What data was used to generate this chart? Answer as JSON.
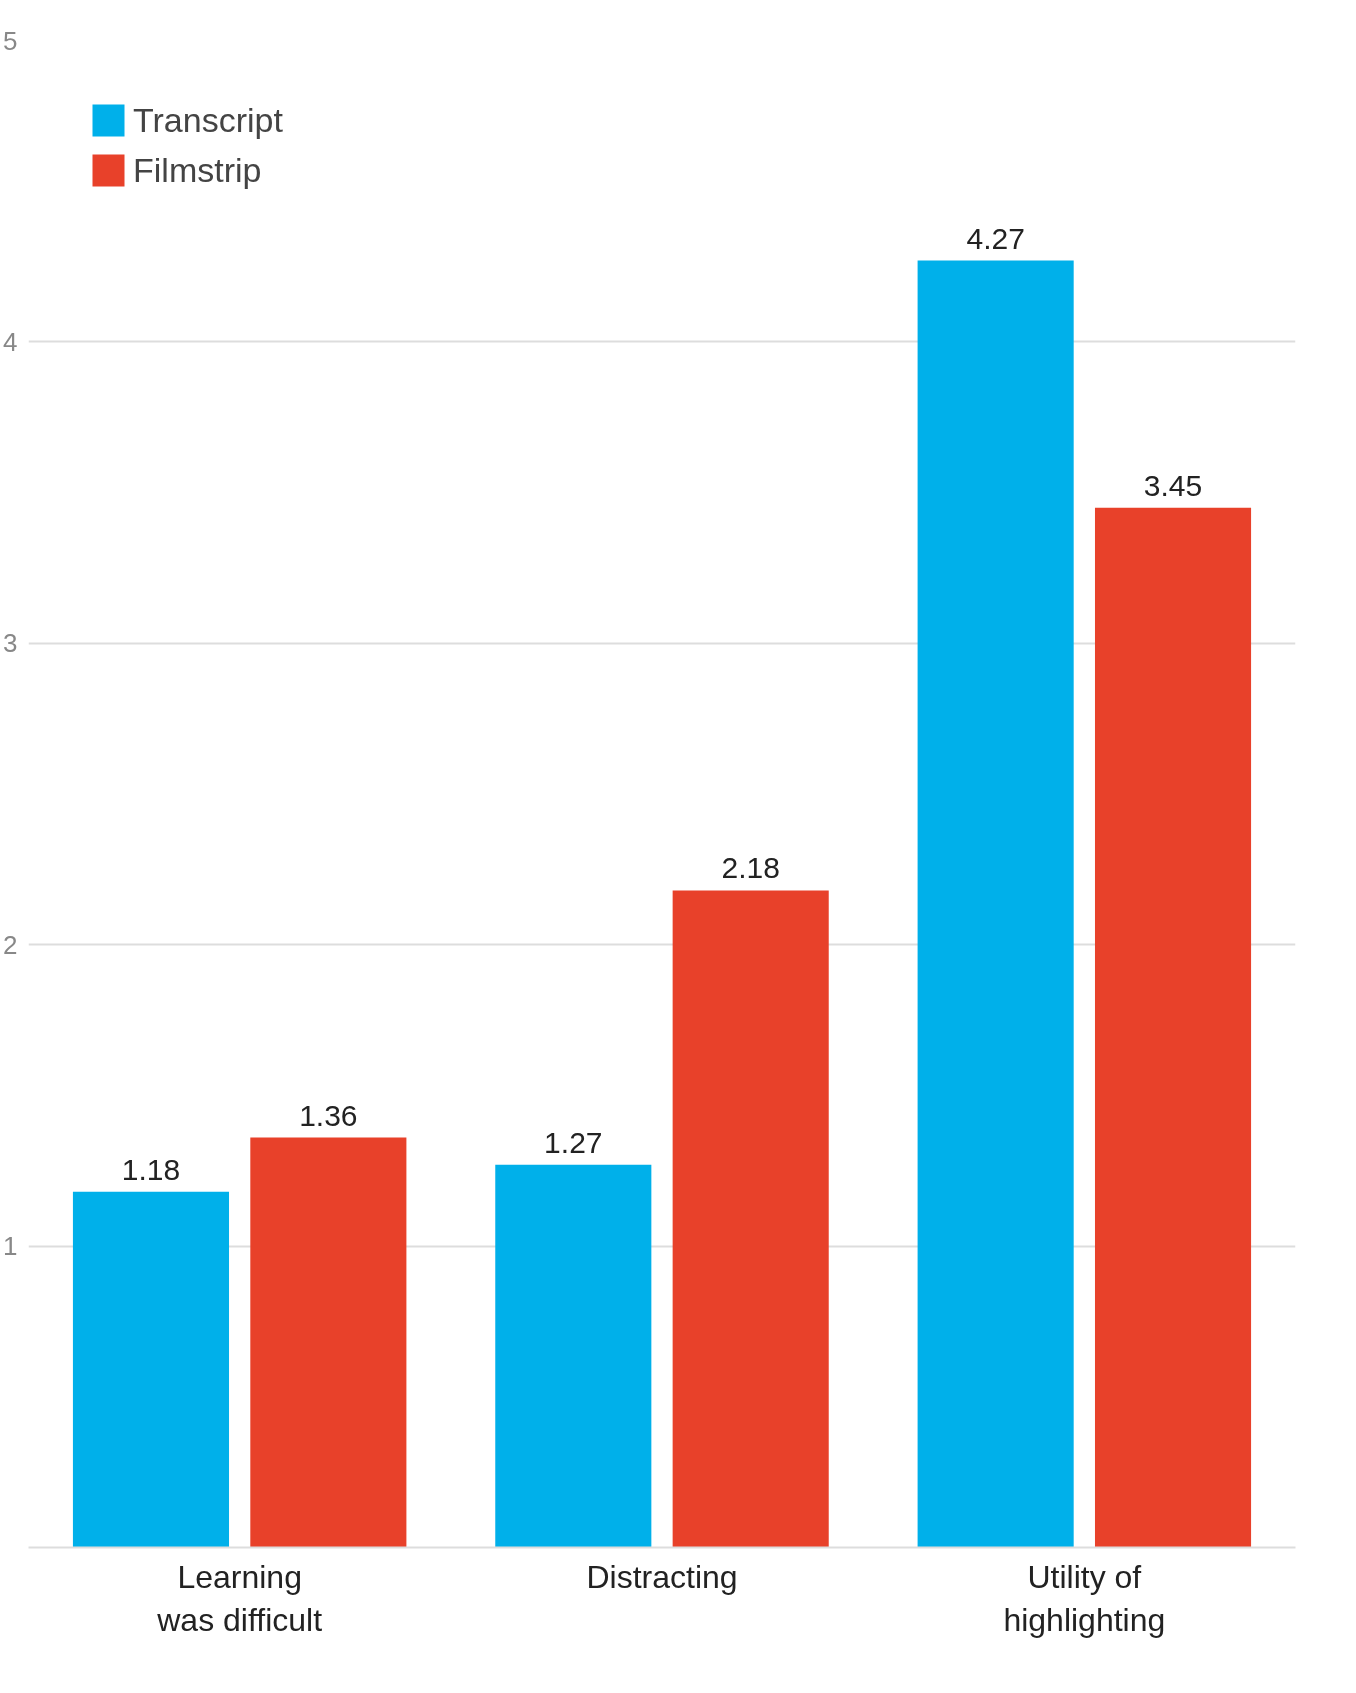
{
  "chart_data": {
    "type": "bar",
    "categories": [
      "Learning\nwas difficult",
      "Distracting",
      "Utility of\nhighlighting"
    ],
    "series": [
      {
        "name": "Transcript",
        "color": "#00b0ea",
        "values": [
          1.18,
          1.27,
          4.27
        ]
      },
      {
        "name": "Filmstrip",
        "color": "#e8412a",
        "values": [
          1.36,
          2.18,
          3.45
        ]
      }
    ],
    "ylim": [
      0,
      5
    ],
    "yticks": [
      1,
      2,
      3,
      4,
      5
    ],
    "grid": "y",
    "legend": "top left",
    "data_labels": true
  }
}
